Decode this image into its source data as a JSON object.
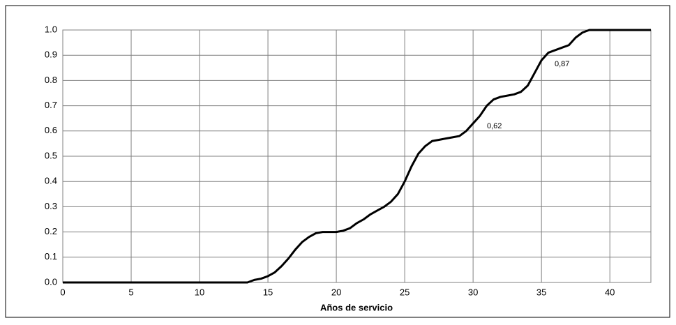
{
  "chart_data": {
    "type": "line",
    "x_label": "Años de servicio",
    "x": [
      0,
      5,
      10,
      13.5,
      14,
      14.5,
      15,
      15.5,
      16,
      16.5,
      17,
      17.5,
      18,
      18.5,
      19,
      19.5,
      20,
      20.5,
      21,
      21.5,
      22,
      22.5,
      23,
      23.5,
      24,
      24.5,
      25,
      25.5,
      26,
      26.5,
      27,
      27.5,
      28,
      28.5,
      29,
      29.5,
      30,
      30.5,
      31,
      31.5,
      32,
      32.5,
      33,
      33.5,
      34,
      34.5,
      35,
      35.5,
      36,
      36.5,
      37,
      37.5,
      38,
      38.5,
      39,
      43
    ],
    "series": [
      {
        "color": "#000000",
        "values": [
          0,
          0,
          0,
          0,
          0.01,
          0.015,
          0.025,
          0.04,
          0.065,
          0.095,
          0.13,
          0.16,
          0.18,
          0.195,
          0.2,
          0.2,
          0.2,
          0.205,
          0.215,
          0.235,
          0.25,
          0.27,
          0.285,
          0.3,
          0.32,
          0.35,
          0.4,
          0.46,
          0.51,
          0.54,
          0.56,
          0.565,
          0.57,
          0.575,
          0.58,
          0.6,
          0.63,
          0.66,
          0.7,
          0.725,
          0.735,
          0.74,
          0.745,
          0.755,
          0.78,
          0.83,
          0.88,
          0.91,
          0.92,
          0.93,
          0.94,
          0.97,
          0.99,
          1.0,
          1.0,
          1.0
        ]
      }
    ],
    "xlim": [
      0,
      43
    ],
    "xticks": [
      0,
      5,
      10,
      15,
      20,
      25,
      30,
      35,
      40
    ],
    "ylim": [
      0,
      1
    ],
    "yticks": [
      {
        "value": 0,
        "label": "0.0"
      },
      0.1,
      0.2,
      0.3,
      0.4,
      0.5,
      0.6,
      0.7,
      0.8,
      0.9,
      {
        "value": 1,
        "label": "1.0"
      }
    ],
    "grid": true,
    "grid_color": "#808080",
    "annotations": [
      "0,62",
      "0,87"
    ]
  }
}
